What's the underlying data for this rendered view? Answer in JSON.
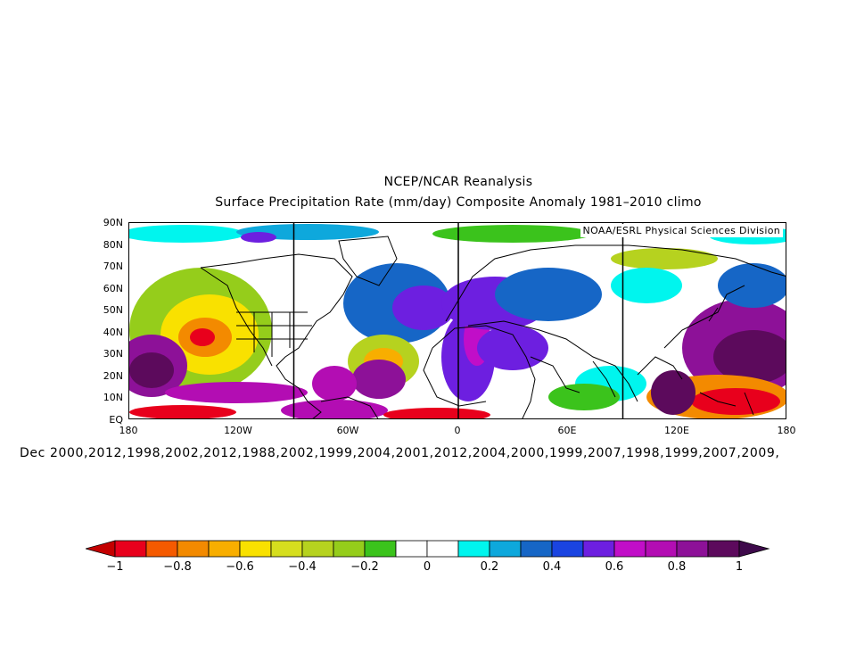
{
  "title": {
    "line1": "NCEP/NCAR Reanalysis",
    "line2": "Surface Precipitation Rate (mm/day) Composite Anomaly 1981–2010 climo"
  },
  "credit": "NOAA/ESRL Physical Sciences Division",
  "axes": {
    "lat_labels": [
      "90N",
      "80N",
      "70N",
      "60N",
      "50N",
      "40N",
      "30N",
      "20N",
      "10N",
      "EQ"
    ],
    "lon_labels": [
      "180",
      "120W",
      "60W",
      "0",
      "60E",
      "120E",
      "180"
    ],
    "lat_range": [
      0,
      90
    ],
    "lon_range": [
      -180,
      180
    ],
    "reference_meridians": [
      -90,
      0,
      90
    ]
  },
  "composite_dates": "Dec 2000,2012,1998,2002,2012,1988,2002,1999,2004,2001,2012,2004,2000,1999,2007,1998,1999,2007,2009,",
  "colorbar": {
    "tick_labels": [
      "−1",
      "−0.8",
      "−0.6",
      "−0.4",
      "−0.2",
      "0",
      "0.2",
      "0.4",
      "0.6",
      "0.8",
      "1"
    ],
    "levels": [
      -1,
      -0.9,
      -0.8,
      -0.7,
      -0.6,
      -0.5,
      -0.4,
      -0.3,
      -0.2,
      -0.1,
      0,
      0.1,
      0.2,
      0.3,
      0.4,
      0.5,
      0.6,
      0.7,
      0.8,
      0.9,
      1
    ],
    "colors": [
      "#e8001c",
      "#f55a00",
      "#f38a00",
      "#f8ae00",
      "#f9e100",
      "#d6de1e",
      "#b6d21f",
      "#95cd1b",
      "#3bc31c",
      "#ffffff",
      "#ffffff",
      "#00f5ee",
      "#0ea8dc",
      "#1666c6",
      "#1a44e1",
      "#6d1fe0",
      "#c10ec8",
      "#b30db3",
      "#8d1198",
      "#5c0a5c"
    ],
    "under_color": "#c40000",
    "over_color": "#3e0a4b"
  },
  "map_colors": {
    "land_outline": "#000000",
    "positive_anomaly": "#7f0fb0",
    "negative_anomaly": "#d83010",
    "neutral": "#ffffff"
  }
}
